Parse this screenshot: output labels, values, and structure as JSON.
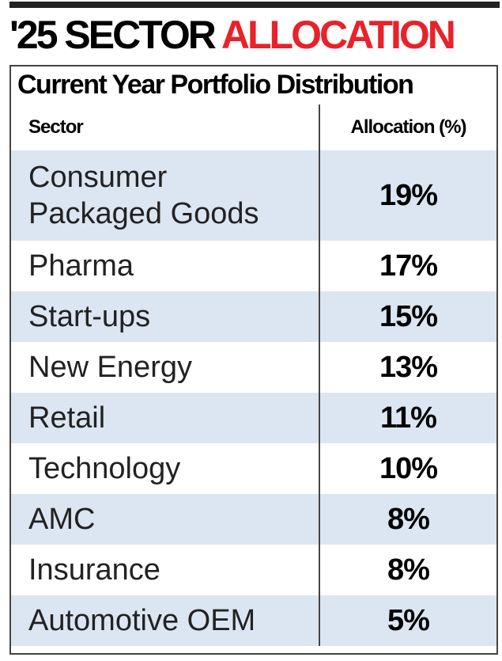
{
  "header": {
    "title_black": "'25 SECTOR",
    "title_red": "ALLOCATION"
  },
  "table": {
    "title": "Current Year Portfolio Distribution",
    "columns": [
      "Sector",
      "Allocation (%)"
    ],
    "rows": [
      [
        "Consumer Packaged Goods",
        "19%"
      ],
      [
        "Pharma",
        "17%"
      ],
      [
        "Start-ups",
        "15%"
      ],
      [
        "New Energy",
        "13%"
      ],
      [
        "Retail",
        "11%"
      ],
      [
        "Technology",
        "10%"
      ],
      [
        "AMC",
        "8%"
      ],
      [
        "Insurance",
        "8%"
      ],
      [
        "Automotive OEM",
        "5%"
      ]
    ]
  }
}
